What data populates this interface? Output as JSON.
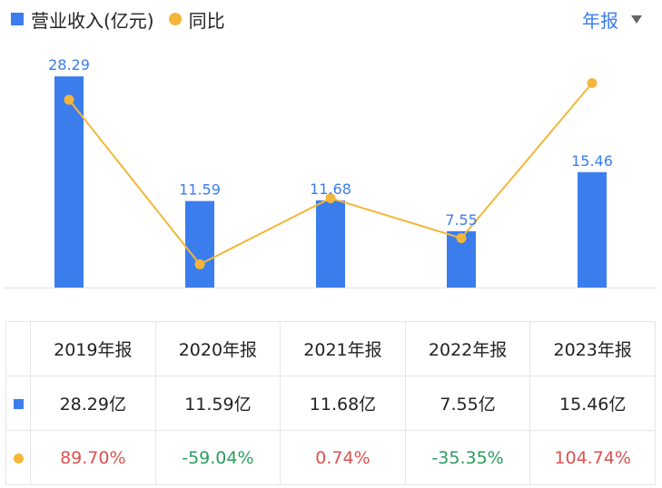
{
  "legend": {
    "revenue_label": "营业收入(亿元)",
    "yoy_label": "同比"
  },
  "period_selector": {
    "label": "年报"
  },
  "colors": {
    "bar": "#3b7ded",
    "line": "#f3b63a",
    "positive": "#d9534f",
    "negative": "#2e9b5e"
  },
  "chart_data": {
    "type": "bar+line",
    "categories": [
      "2019年报",
      "2020年报",
      "2021年报",
      "2022年报",
      "2023年报"
    ],
    "series": [
      {
        "name": "营业收入(亿元)",
        "type": "bar",
        "values": [
          28.29,
          11.59,
          11.68,
          7.55,
          15.46
        ],
        "labels": [
          "28.29",
          "11.59",
          "11.68",
          "7.55",
          "15.46"
        ]
      },
      {
        "name": "同比",
        "type": "line",
        "values": [
          89.7,
          -59.04,
          0.74,
          -35.35,
          104.74
        ]
      }
    ],
    "bar_ylim": [
      0,
      30
    ],
    "line_ylim": [
      -80,
      120
    ]
  },
  "table": {
    "headers": [
      "2019年报",
      "2020年报",
      "2021年报",
      "2022年报",
      "2023年报"
    ],
    "revenue_row": [
      "28.29亿",
      "11.59亿",
      "11.68亿",
      "7.55亿",
      "15.46亿"
    ],
    "yoy_row": [
      "89.70%",
      "-59.04%",
      "0.74%",
      "-35.35%",
      "104.74%"
    ]
  }
}
